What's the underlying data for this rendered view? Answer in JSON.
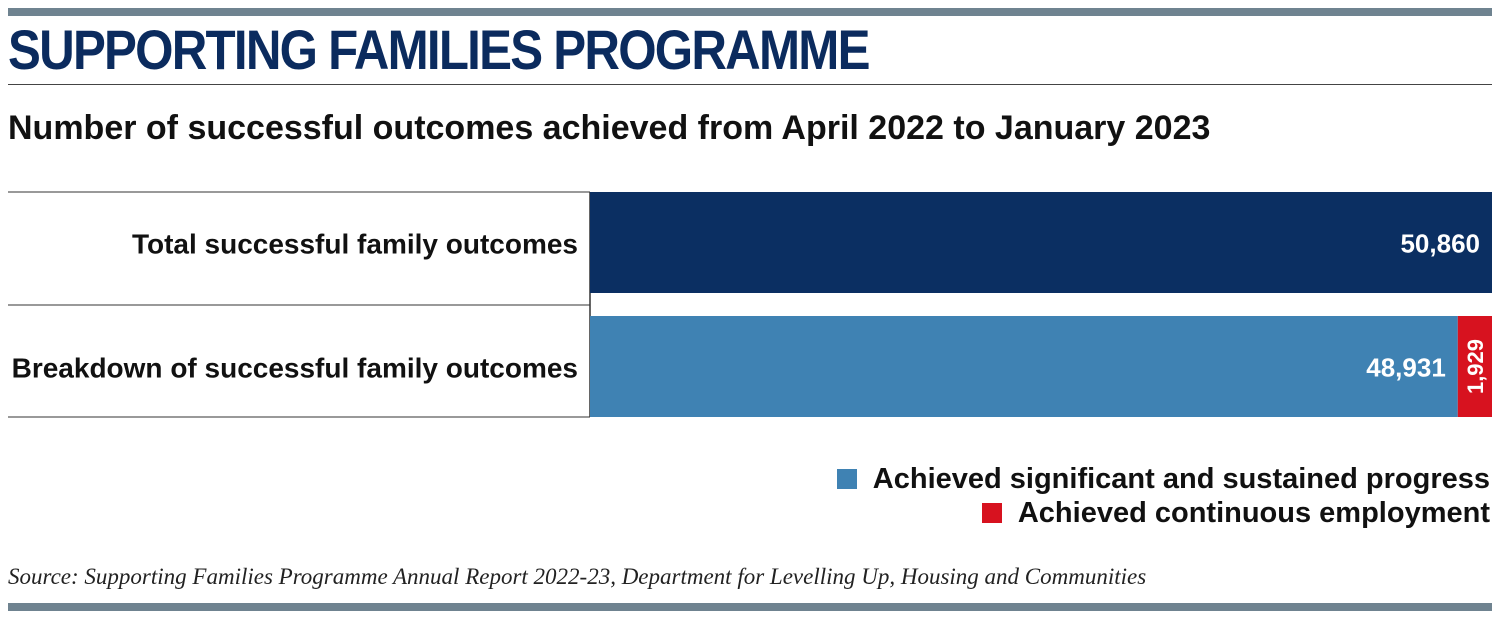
{
  "header": {
    "title": "SUPPORTING FAMILIES PROGRAMME",
    "subtitle": "Number of successful outcomes achieved from April 2022 to January 2023"
  },
  "source": "Source: Supporting Families Programme Annual Report 2022-23, Department for Levelling Up, Housing and Communities",
  "colors": {
    "total": "#0b2f62",
    "sustained_progress": "#3f82b3",
    "continuous_employment": "#d7121f"
  },
  "chart_data": {
    "type": "bar",
    "orientation": "horizontal",
    "stacked": true,
    "categories": [
      "Total successful family outcomes",
      "Breakdown of successful family outcomes"
    ],
    "series": [
      {
        "name": "",
        "values": [
          50860,
          null
        ],
        "value_labels": [
          "50,860",
          ""
        ],
        "color": "#0b2f62"
      },
      {
        "name": "Achieved significant and sustained progress",
        "values": [
          null,
          48931
        ],
        "value_labels": [
          "",
          "48,931"
        ],
        "color": "#3f82b3"
      },
      {
        "name": "Achieved continuous employment",
        "values": [
          null,
          1929
        ],
        "value_labels": [
          "",
          "1,929"
        ],
        "color": "#d7121f"
      }
    ],
    "xlim": [
      0,
      50860
    ],
    "legend_position": "bottom-right",
    "grid": false
  }
}
